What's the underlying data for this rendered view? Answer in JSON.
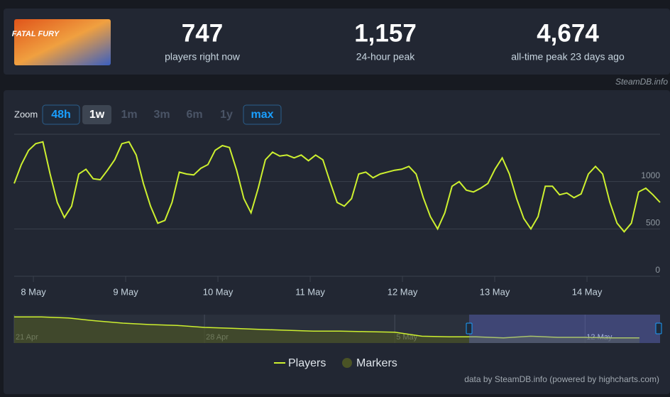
{
  "header": {
    "thumbnail_text": "FATAL FURY",
    "stats": [
      {
        "value": "747",
        "label": "players right now"
      },
      {
        "value": "1,157",
        "label": "24-hour peak"
      },
      {
        "value": "4,674",
        "label": "all-time peak 23 days ago"
      }
    ],
    "credit": "SteamDB.info"
  },
  "zoom": {
    "label": "Zoom",
    "buttons": [
      "48h",
      "1w",
      "1m",
      "3m",
      "6m",
      "1y",
      "max"
    ],
    "active": "1w",
    "highlighted": [
      "48h",
      "max"
    ],
    "disabled": [
      "1m",
      "3m",
      "6m",
      "1y"
    ]
  },
  "chart_data": [
    {
      "type": "line",
      "x": [
        7.792,
        7.87,
        7.948,
        8.025,
        8.103,
        8.181,
        8.259,
        8.336,
        8.414,
        8.492,
        8.57,
        8.648,
        8.725,
        8.803,
        8.881,
        8.959,
        9.036,
        9.114,
        9.192,
        9.27,
        9.348,
        9.425,
        9.503,
        9.581,
        9.659,
        9.737,
        9.814,
        9.892,
        9.97,
        10.048,
        10.125,
        10.203,
        10.281,
        10.359,
        10.437,
        10.514,
        10.592,
        10.67,
        10.748,
        10.826,
        10.903,
        10.981,
        11.059,
        11.137,
        11.214,
        11.292,
        11.37,
        11.448,
        11.526,
        11.603,
        11.681,
        11.759,
        11.837,
        11.914,
        11.992,
        12.07,
        12.148,
        12.226,
        12.303,
        12.381,
        12.459,
        12.537,
        12.615,
        12.692,
        12.77,
        12.848,
        12.926,
        13.003,
        13.081,
        13.159,
        13.237,
        13.315,
        13.392,
        13.47,
        13.548,
        13.626,
        13.703,
        13.781,
        13.859,
        13.937,
        14.015,
        14.092,
        14.17,
        14.248,
        14.326,
        14.403,
        14.481,
        14.559,
        14.637,
        14.715,
        14.792
      ],
      "series": [
        {
          "name": "Players",
          "color": "#cdf02f",
          "values": [
            980,
            1180,
            1330,
            1400,
            1420,
            1080,
            780,
            620,
            740,
            1080,
            1130,
            1030,
            1020,
            1120,
            1230,
            1400,
            1420,
            1280,
            980,
            740,
            560,
            590,
            780,
            1100,
            1080,
            1070,
            1140,
            1180,
            1330,
            1380,
            1360,
            1120,
            820,
            670,
            930,
            1230,
            1310,
            1270,
            1280,
            1250,
            1280,
            1220,
            1280,
            1230,
            1000,
            780,
            740,
            820,
            1080,
            1100,
            1040,
            1080,
            1100,
            1120,
            1130,
            1160,
            1080,
            830,
            630,
            500,
            670,
            950,
            1000,
            910,
            890,
            930,
            980,
            1130,
            1250,
            1080,
            820,
            610,
            500,
            630,
            950,
            950,
            860,
            880,
            830,
            870,
            1080,
            1160,
            1080,
            780,
            560,
            470,
            560,
            890,
            930,
            860,
            780
          ]
        }
      ],
      "markers": {
        "name": "Markers",
        "color": "#4a5325"
      },
      "xlim": [
        7.792,
        14.792
      ],
      "xticks": [
        {
          "value": 8,
          "label": "8 May"
        },
        {
          "value": 9,
          "label": "9 May"
        },
        {
          "value": 10,
          "label": "10 May"
        },
        {
          "value": 11,
          "label": "11 May"
        },
        {
          "value": 12,
          "label": "12 May"
        },
        {
          "value": 13,
          "label": "13 May"
        },
        {
          "value": 14,
          "label": "14 May"
        }
      ],
      "ylim": [
        0,
        1500
      ],
      "yticks": [
        0,
        500,
        1000
      ],
      "grid": true
    },
    {
      "type": "area",
      "categories": [
        "21 Apr",
        null,
        null,
        null,
        null,
        null,
        null,
        "28 Apr",
        null,
        null,
        null,
        null,
        null,
        null,
        "5 May",
        null,
        null,
        null,
        null,
        null,
        null,
        "12 May",
        null,
        null
      ],
      "values": [
        4600,
        4600,
        4400,
        3900,
        3500,
        3250,
        3100,
        2750,
        2600,
        2400,
        2250,
        2100,
        2100,
        2000,
        1900,
        1200,
        1100,
        1100,
        900,
        1200,
        1000,
        1000,
        900,
        900
      ],
      "color": "#cdf02f",
      "ylim": [
        0,
        5000
      ]
    }
  ],
  "footer": "data by SteamDB.info (powered by highcharts.com)"
}
